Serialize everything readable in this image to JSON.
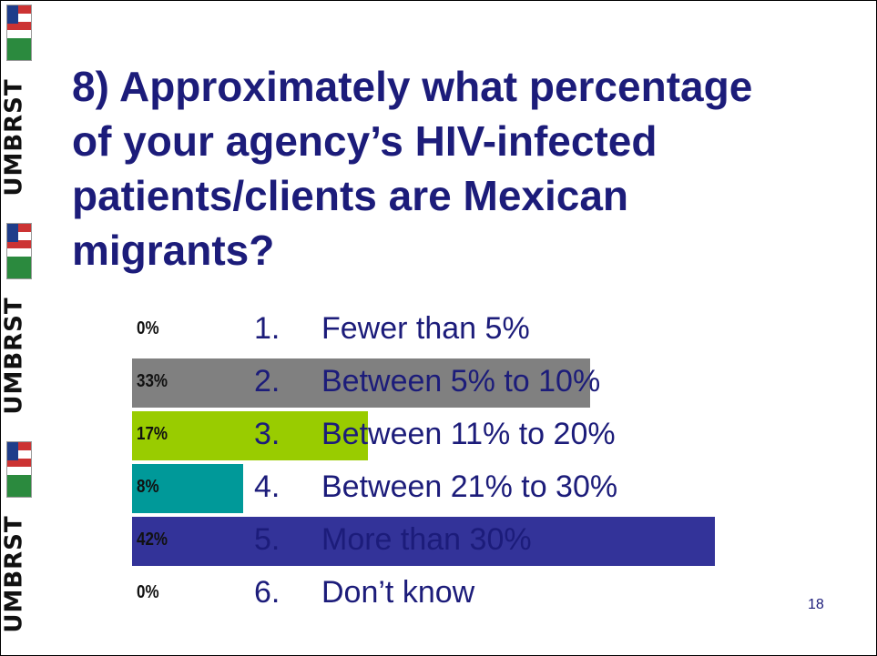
{
  "title": "8) Approximately what percentage of your agency’s HIV-infected patients/clients are Mexican migrants?",
  "logo_text": "UMBRST",
  "options": [
    {
      "number": "1.",
      "label": "Fewer than 5%",
      "percent_label": "0%",
      "value": 0,
      "color": ""
    },
    {
      "number": "2.",
      "label": "Between 5% to 10%",
      "percent_label": "33%",
      "value": 33,
      "color": "#808080"
    },
    {
      "number": "3.",
      "label": "Between 11% to 20%",
      "percent_label": "17%",
      "value": 17,
      "color": "#99cc00"
    },
    {
      "number": "4.",
      "label": "Between 21% to 30%",
      "percent_label": "8%",
      "value": 8,
      "color": "#009999"
    },
    {
      "number": "5.",
      "label": "More than 30%",
      "percent_label": "42%",
      "value": 42,
      "color": "#333399"
    },
    {
      "number": "6.",
      "label": "Don’t know",
      "percent_label": "0%",
      "value": 0,
      "color": ""
    }
  ],
  "slide_number": "18"
}
